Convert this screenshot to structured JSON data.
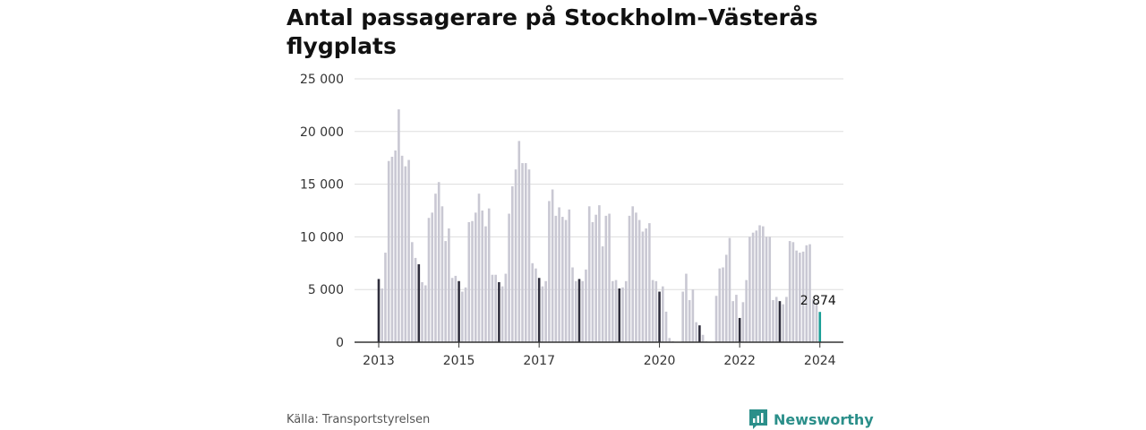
{
  "title": "Antal passagerare på Stockholm–Västerås flygplats",
  "source": "Källa: Transportstyrelsen",
  "brand": {
    "name": "Newsworthy",
    "icon": "newsworthy-logo-icon"
  },
  "colors": {
    "bar": "#c9c8d3",
    "january": "#2f2e3d",
    "latest": "#1a9e96",
    "grid": "#dddddd",
    "brand": "#2b8f8a"
  },
  "chart_data": {
    "type": "bar",
    "title": "Antal passagerare på Stockholm–Västerås flygplats",
    "xlabel": "",
    "ylabel": "",
    "ylim": [
      0,
      25000
    ],
    "yticks": [
      0,
      5000,
      10000,
      15000,
      20000,
      25000
    ],
    "ytick_labels": [
      "0",
      "5 000",
      "10 000",
      "15 000",
      "20 000",
      "25 000"
    ],
    "x_tick_labels": [
      "2013",
      "2015",
      "2017",
      "2020",
      "2022",
      "2024"
    ],
    "grid": true,
    "start": "2013-01",
    "end": "2024-01",
    "highlight": "January values in dark, latest month in teal",
    "latest_label": "2 874",
    "values": [
      6000,
      5100,
      8500,
      17200,
      17600,
      18200,
      22100,
      17700,
      16700,
      17300,
      9500,
      8000,
      7400,
      5700,
      5400,
      11800,
      12300,
      14100,
      15200,
      12900,
      9600,
      10800,
      6100,
      6300,
      5800,
      4800,
      5200,
      11400,
      11500,
      12300,
      14100,
      12500,
      11000,
      12700,
      6400,
      6400,
      5700,
      5300,
      6500,
      12200,
      14800,
      16400,
      19100,
      17000,
      17000,
      16400,
      7500,
      7000,
      6100,
      5300,
      5800,
      13400,
      14500,
      12000,
      12800,
      11900,
      11600,
      12600,
      7100,
      5800,
      6000,
      5800,
      6900,
      12900,
      11400,
      12100,
      13000,
      9100,
      12000,
      12200,
      5800,
      5900,
      5100,
      5200,
      5800,
      12000,
      12900,
      12300,
      11600,
      10500,
      10800,
      11300,
      5900,
      5800,
      4800,
      5300,
      2900,
      400,
      100,
      0,
      0,
      4800,
      6500,
      4000,
      5000,
      1900,
      1600,
      700,
      100,
      50,
      50,
      4400,
      7000,
      7100,
      8300,
      9900,
      3900,
      4500,
      2300,
      3800,
      5900,
      10000,
      10400,
      10600,
      11100,
      11000,
      10000,
      10000,
      4000,
      4300,
      3900,
      3600,
      4300,
      9600,
      9500,
      8700,
      8500,
      8600,
      9200,
      9300,
      4100,
      3800,
      2874
    ]
  }
}
